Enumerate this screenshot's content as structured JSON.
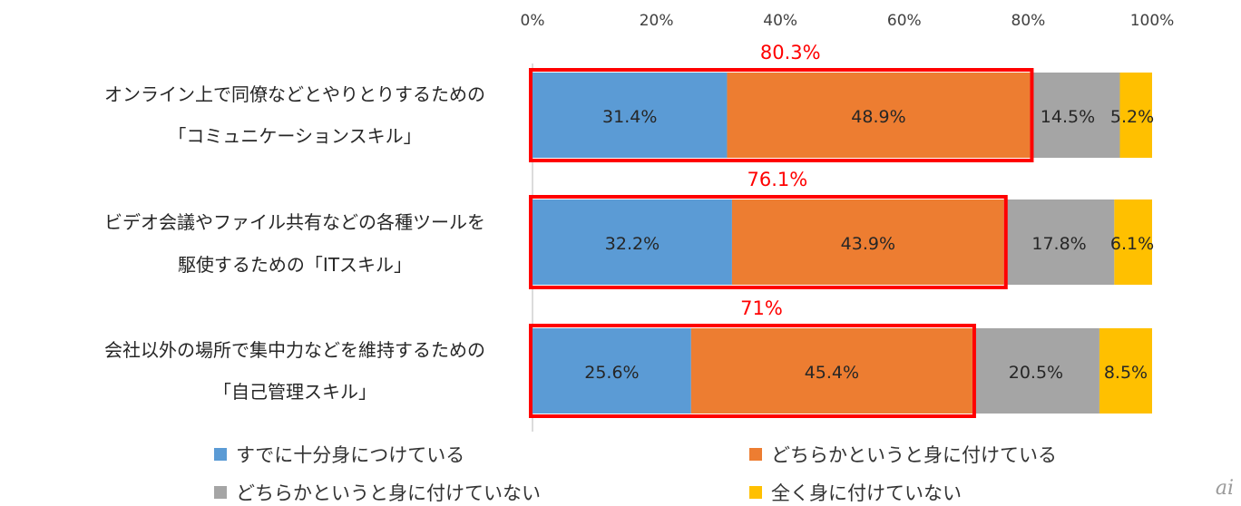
{
  "chart_data": {
    "type": "bar",
    "orientation": "horizontal",
    "stacked": true,
    "x_ticks": [
      "0%",
      "20%",
      "40%",
      "60%",
      "80%",
      "100%"
    ],
    "xlim": [
      0,
      100
    ],
    "grid": false,
    "legend_position": "bottom",
    "categories": [
      [
        "オンライン上で同僚などとやりとりするための",
        "「コミュニケーションスキル」"
      ],
      [
        "ビデオ会議やファイル共有などの各種ツールを",
        "駆使するための「ITスキル」"
      ],
      [
        "会社以外の場所で集中力などを維持するための",
        "「自己管理スキル」"
      ]
    ],
    "series": [
      {
        "name": "すでに十分身につけている",
        "color": "#5b9bd5",
        "values": [
          31.4,
          32.2,
          25.6
        ],
        "labels": [
          "31.4%",
          "32.2%",
          "25.6%"
        ]
      },
      {
        "name": "どちらかというと身に付けている",
        "color": "#ed7d31",
        "values": [
          48.9,
          43.9,
          45.4
        ],
        "labels": [
          "48.9%",
          "43.9%",
          "45.4%"
        ]
      },
      {
        "name": "どちらかというと身に付けていない",
        "color": "#a5a5a5",
        "values": [
          14.5,
          17.8,
          20.5
        ],
        "labels": [
          "14.5%",
          "17.8%",
          "20.5%"
        ]
      },
      {
        "name": "全く身に付けていない",
        "color": "#ffc000",
        "values": [
          5.2,
          6.1,
          8.5
        ],
        "labels": [
          "5.2%",
          "6.1%",
          "8.5%"
        ]
      }
    ],
    "highlight": {
      "values": [
        80.3,
        76.1,
        71.0
      ],
      "labels": [
        "80.3%",
        "76.1%",
        "71%"
      ],
      "color": "#ff0000"
    }
  },
  "watermark": "ai"
}
